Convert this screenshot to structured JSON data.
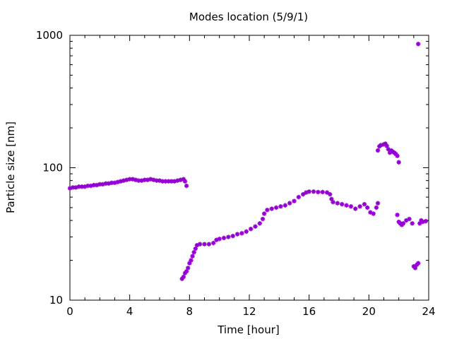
{
  "chart_data": {
    "type": "scatter",
    "title": "Modes location (5/9/1)",
    "xlabel": "Time [hour]",
    "ylabel": "Particle size [nm]",
    "xlim": [
      0,
      24
    ],
    "ylim": [
      10,
      1000
    ],
    "yscale": "log",
    "grid": false,
    "marker_color": "#9400d3",
    "x_ticks": [
      0,
      4,
      8,
      12,
      16,
      20,
      24
    ],
    "y_ticks": [
      10,
      100,
      1000
    ],
    "series": [
      {
        "points": [
          [
            0.0,
            70
          ],
          [
            0.2,
            71
          ],
          [
            0.4,
            71
          ],
          [
            0.6,
            72
          ],
          [
            0.8,
            72
          ],
          [
            1.0,
            72
          ],
          [
            1.2,
            73
          ],
          [
            1.4,
            73
          ],
          [
            1.6,
            74
          ],
          [
            1.8,
            74
          ],
          [
            2.0,
            75
          ],
          [
            2.2,
            75
          ],
          [
            2.4,
            76
          ],
          [
            2.6,
            76
          ],
          [
            2.8,
            77
          ],
          [
            3.0,
            77
          ],
          [
            3.2,
            78
          ],
          [
            3.4,
            79
          ],
          [
            3.6,
            80
          ],
          [
            3.8,
            81
          ],
          [
            4.0,
            82
          ],
          [
            4.2,
            82
          ],
          [
            4.4,
            81
          ],
          [
            4.6,
            80
          ],
          [
            4.8,
            80
          ],
          [
            5.0,
            81
          ],
          [
            5.2,
            81
          ],
          [
            5.4,
            82
          ],
          [
            5.6,
            81
          ],
          [
            5.8,
            80
          ],
          [
            6.0,
            80
          ],
          [
            6.2,
            79
          ],
          [
            6.4,
            79
          ],
          [
            6.6,
            79
          ],
          [
            6.8,
            79
          ],
          [
            7.0,
            79
          ],
          [
            7.2,
            80
          ],
          [
            7.4,
            81
          ],
          [
            7.6,
            82
          ],
          [
            7.7,
            79
          ],
          [
            7.8,
            73
          ],
          [
            7.5,
            14.5
          ],
          [
            7.6,
            15
          ],
          [
            7.7,
            16
          ],
          [
            7.8,
            16.5
          ],
          [
            7.9,
            17.5
          ],
          [
            8.0,
            19
          ],
          [
            8.1,
            20
          ],
          [
            8.2,
            21.5
          ],
          [
            8.3,
            23
          ],
          [
            8.4,
            24.5
          ],
          [
            8.5,
            26
          ],
          [
            8.7,
            26.5
          ],
          [
            9.0,
            26.5
          ],
          [
            9.3,
            26.5
          ],
          [
            9.6,
            27
          ],
          [
            9.8,
            28.5
          ],
          [
            10.0,
            29
          ],
          [
            10.3,
            29.5
          ],
          [
            10.6,
            30
          ],
          [
            10.9,
            30.5
          ],
          [
            11.2,
            31.5
          ],
          [
            11.5,
            32
          ],
          [
            11.8,
            33
          ],
          [
            12.1,
            34.5
          ],
          [
            12.4,
            36
          ],
          [
            12.7,
            38
          ],
          [
            12.9,
            41
          ],
          [
            13.0,
            45
          ],
          [
            13.2,
            48
          ],
          [
            13.5,
            49
          ],
          [
            13.8,
            50
          ],
          [
            14.1,
            51
          ],
          [
            14.4,
            52
          ],
          [
            14.7,
            54
          ],
          [
            15.0,
            56
          ],
          [
            15.3,
            60
          ],
          [
            15.6,
            63
          ],
          [
            15.8,
            65
          ],
          [
            16.0,
            66
          ],
          [
            16.3,
            66
          ],
          [
            16.6,
            65.5
          ],
          [
            16.9,
            65.5
          ],
          [
            17.2,
            65
          ],
          [
            17.4,
            63
          ],
          [
            17.5,
            58
          ],
          [
            17.6,
            55
          ],
          [
            17.9,
            54
          ],
          [
            18.2,
            53
          ],
          [
            18.5,
            52
          ],
          [
            18.8,
            51
          ],
          [
            19.1,
            49
          ],
          [
            19.4,
            51
          ],
          [
            19.7,
            53
          ],
          [
            19.9,
            50
          ],
          [
            20.1,
            46
          ],
          [
            20.3,
            45
          ],
          [
            20.5,
            50
          ],
          [
            20.6,
            54
          ],
          [
            20.6,
            135
          ],
          [
            20.7,
            145
          ],
          [
            20.8,
            148
          ],
          [
            21.0,
            150
          ],
          [
            21.1,
            152
          ],
          [
            21.2,
            146
          ],
          [
            21.3,
            138
          ],
          [
            21.4,
            130
          ],
          [
            21.5,
            135
          ],
          [
            21.6,
            132
          ],
          [
            21.7,
            130
          ],
          [
            21.8,
            127
          ],
          [
            21.9,
            123
          ],
          [
            22.0,
            110
          ],
          [
            21.9,
            44
          ],
          [
            22.0,
            39
          ],
          [
            22.1,
            38
          ],
          [
            22.2,
            37
          ],
          [
            22.3,
            38
          ],
          [
            22.5,
            40
          ],
          [
            22.7,
            41
          ],
          [
            22.9,
            38
          ],
          [
            23.0,
            18
          ],
          [
            23.1,
            17.5
          ],
          [
            23.2,
            18.5
          ],
          [
            23.3,
            19
          ],
          [
            23.3,
            860
          ],
          [
            23.4,
            38
          ],
          [
            23.5,
            40
          ],
          [
            23.6,
            39
          ],
          [
            23.8,
            39.5
          ]
        ]
      }
    ]
  }
}
